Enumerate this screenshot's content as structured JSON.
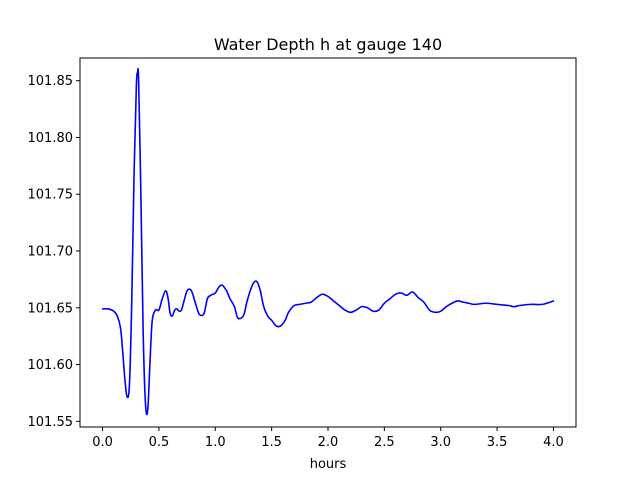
{
  "chart_data": {
    "type": "line",
    "title": "Water Depth h at gauge 140",
    "xlabel": "hours",
    "ylabel": "",
    "xlim": [
      -0.2,
      4.2
    ],
    "ylim": [
      101.545,
      101.87
    ],
    "xticks": [
      0.0,
      0.5,
      1.0,
      1.5,
      2.0,
      2.5,
      3.0,
      3.5,
      4.0
    ],
    "xtick_labels": [
      "0.0",
      "0.5",
      "1.0",
      "1.5",
      "2.0",
      "2.5",
      "3.0",
      "3.5",
      "4.0"
    ],
    "yticks": [
      101.55,
      101.6,
      101.65,
      101.7,
      101.75,
      101.8,
      101.85
    ],
    "ytick_labels": [
      "101.55",
      "101.60",
      "101.65",
      "101.70",
      "101.75",
      "101.80",
      "101.85"
    ],
    "grid": false,
    "legend": "none",
    "series": [
      {
        "color": "#0000ff",
        "x": [
          0.0,
          0.05,
          0.1,
          0.13,
          0.16,
          0.18,
          0.2,
          0.22,
          0.24,
          0.26,
          0.28,
          0.3,
          0.31,
          0.32,
          0.34,
          0.36,
          0.38,
          0.4,
          0.42,
          0.44,
          0.47,
          0.5,
          0.53,
          0.56,
          0.58,
          0.6,
          0.62,
          0.64,
          0.66,
          0.68,
          0.7,
          0.72,
          0.75,
          0.78,
          0.8,
          0.83,
          0.86,
          0.9,
          0.93,
          0.96,
          1.0,
          1.03,
          1.06,
          1.1,
          1.13,
          1.17,
          1.2,
          1.25,
          1.28,
          1.31,
          1.34,
          1.37,
          1.4,
          1.42,
          1.44,
          1.47,
          1.5,
          1.54,
          1.58,
          1.62,
          1.65,
          1.7,
          1.75,
          1.8,
          1.85,
          1.9,
          1.95,
          2.0,
          2.05,
          2.1,
          2.15,
          2.2,
          2.25,
          2.3,
          2.35,
          2.4,
          2.45,
          2.5,
          2.55,
          2.6,
          2.65,
          2.7,
          2.75,
          2.8,
          2.85,
          2.9,
          2.95,
          3.0,
          3.05,
          3.1,
          3.15,
          3.2,
          3.25,
          3.3,
          3.4,
          3.5,
          3.6,
          3.65,
          3.7,
          3.8,
          3.9,
          4.0
        ],
        "y": [
          101.649,
          101.649,
          101.647,
          101.643,
          101.632,
          101.61,
          101.585,
          101.571,
          101.585,
          101.66,
          101.77,
          101.845,
          101.857,
          101.85,
          101.75,
          101.63,
          101.567,
          101.559,
          101.6,
          101.638,
          101.648,
          101.648,
          101.658,
          101.665,
          101.659,
          101.645,
          101.643,
          101.648,
          101.649,
          101.647,
          101.648,
          101.655,
          101.665,
          101.666,
          101.662,
          101.652,
          101.644,
          101.645,
          101.658,
          101.661,
          101.663,
          101.668,
          101.67,
          101.665,
          101.658,
          101.651,
          101.641,
          101.643,
          101.655,
          101.665,
          101.672,
          101.673,
          101.665,
          101.655,
          101.648,
          101.642,
          101.639,
          101.634,
          101.634,
          101.639,
          101.646,
          101.652,
          101.653,
          101.654,
          101.655,
          101.659,
          101.662,
          101.66,
          101.656,
          101.652,
          101.648,
          101.646,
          101.648,
          101.651,
          101.65,
          101.647,
          101.648,
          101.654,
          101.658,
          101.662,
          101.663,
          101.661,
          101.664,
          101.659,
          101.655,
          101.648,
          101.646,
          101.647,
          101.651,
          101.654,
          101.656,
          101.655,
          101.654,
          101.653,
          101.654,
          101.653,
          101.652,
          101.651,
          101.652,
          101.653,
          101.653,
          101.656
        ]
      }
    ]
  }
}
